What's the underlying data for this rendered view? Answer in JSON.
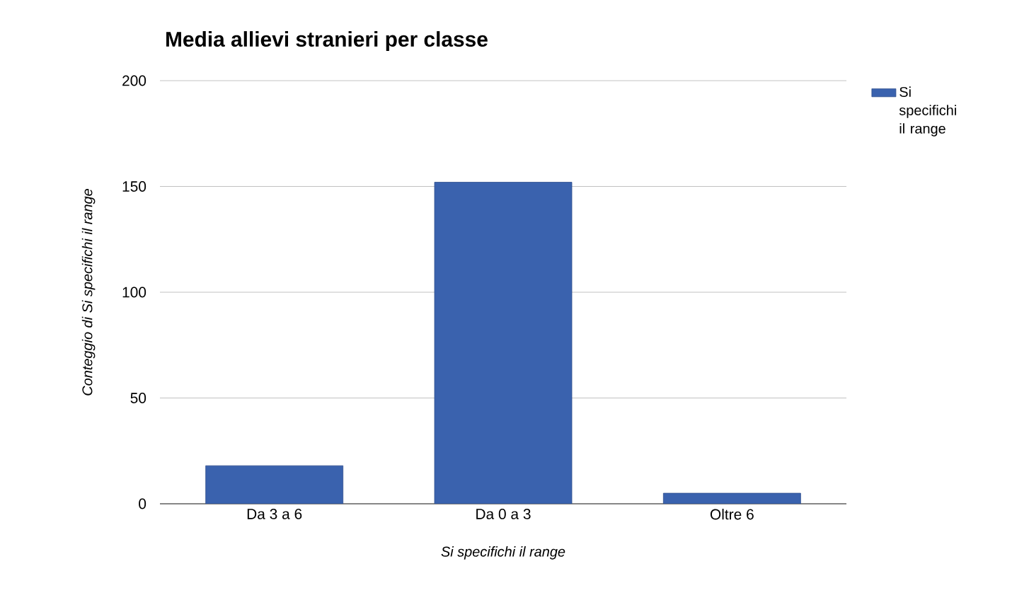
{
  "chart_data": {
    "type": "bar",
    "title": "Media allievi stranieri per classe",
    "categories": [
      "Da 3 a 6",
      "Da 0 a 3",
      "Oltre 6"
    ],
    "series": [
      {
        "name": "Si specifichi il range",
        "color": "#3a62ae",
        "values": [
          18,
          152,
          5
        ]
      }
    ],
    "xlabel": "Si specifichi il range",
    "ylabel": "Conteggio di Si specifichi il range",
    "ylim": [
      0,
      200
    ],
    "yticks": [
      0,
      50,
      100,
      150,
      200
    ],
    "grid": "y",
    "legend": "top right"
  }
}
